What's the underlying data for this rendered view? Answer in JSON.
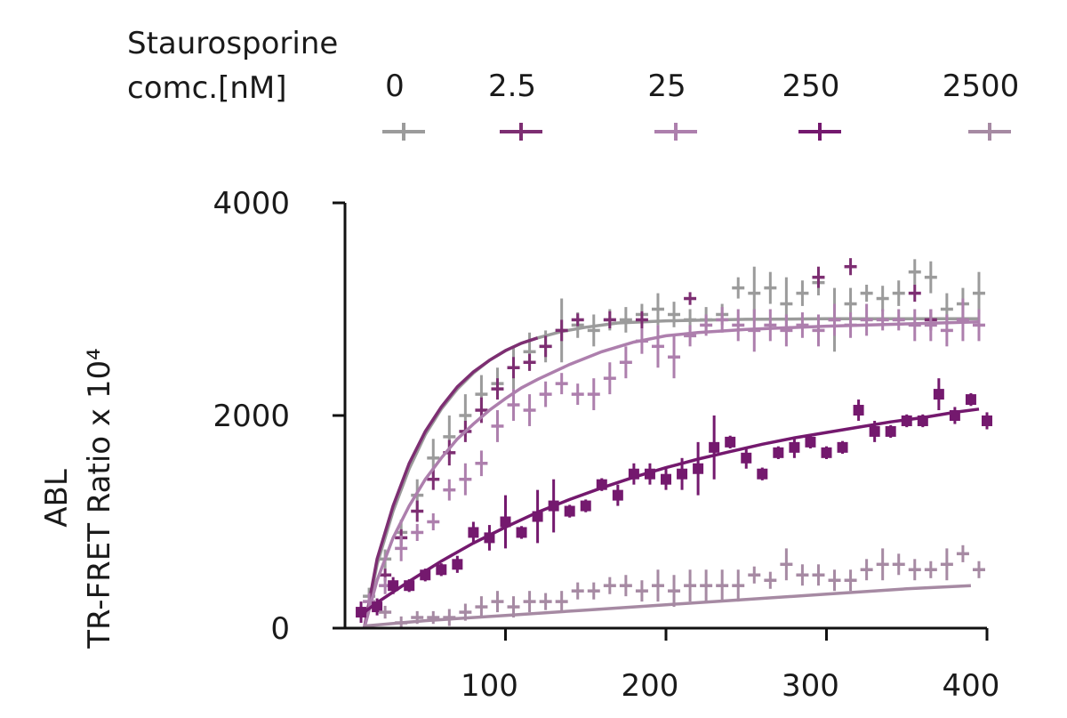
{
  "chart_data": {
    "type": "scatter",
    "ylabel_lines": [
      "ABL",
      "TR-FRET Ratio x 10⁴"
    ],
    "legend": {
      "title_lines": [
        "Staurosporine",
        "comc.[nM]"
      ],
      "placement": "top"
    },
    "xlim": [
      0,
      400
    ],
    "ylim": [
      0,
      4000
    ],
    "x_ticks": [
      100,
      200,
      300,
      400
    ],
    "x_tick_labels": [
      "100",
      "200",
      "300",
      "400"
    ],
    "y_ticks": [
      0,
      2000,
      4000
    ],
    "y_tick_labels": [
      "0",
      "2000",
      "4000"
    ],
    "series": [
      {
        "name": "0",
        "color": "#9b9b9b",
        "marker": "plus",
        "points": [
          [
            15,
            300,
            80
          ],
          [
            25,
            650,
            90
          ],
          [
            35,
            900,
            120
          ],
          [
            45,
            1250,
            150
          ],
          [
            55,
            1600,
            180
          ],
          [
            65,
            1800,
            200
          ],
          [
            75,
            2000,
            200
          ],
          [
            85,
            2200,
            180
          ],
          [
            95,
            2300,
            150
          ],
          [
            105,
            2450,
            200
          ],
          [
            115,
            2600,
            180
          ],
          [
            125,
            2650,
            150
          ],
          [
            135,
            2800,
            300
          ],
          [
            145,
            2850,
            120
          ],
          [
            155,
            2800,
            150
          ],
          [
            165,
            2900,
            100
          ],
          [
            175,
            2900,
            120
          ],
          [
            185,
            2950,
            100
          ],
          [
            195,
            3000,
            150
          ],
          [
            205,
            2950,
            120
          ],
          [
            215,
            2900,
            100
          ],
          [
            225,
            2900,
            120
          ],
          [
            235,
            2950,
            100
          ],
          [
            245,
            3200,
            100
          ],
          [
            255,
            3150,
            250
          ],
          [
            265,
            3200,
            150
          ],
          [
            275,
            3050,
            250
          ],
          [
            285,
            3150,
            120
          ],
          [
            295,
            3250,
            120
          ],
          [
            305,
            2900,
            300
          ],
          [
            315,
            3050,
            150
          ],
          [
            325,
            3150,
            80
          ],
          [
            335,
            3100,
            120
          ],
          [
            345,
            3150,
            120
          ],
          [
            355,
            3350,
            120
          ],
          [
            365,
            3300,
            150
          ],
          [
            375,
            3000,
            150
          ],
          [
            385,
            3050,
            150
          ],
          [
            395,
            3150,
            200
          ]
        ],
        "fit": [
          [
            12,
            0
          ],
          [
            20,
            600
          ],
          [
            30,
            1100
          ],
          [
            40,
            1500
          ],
          [
            50,
            1820
          ],
          [
            60,
            2060
          ],
          [
            70,
            2250
          ],
          [
            80,
            2400
          ],
          [
            90,
            2520
          ],
          [
            100,
            2610
          ],
          [
            110,
            2680
          ],
          [
            120,
            2730
          ],
          [
            135,
            2790
          ],
          [
            150,
            2830
          ],
          [
            170,
            2870
          ],
          [
            200,
            2890
          ],
          [
            250,
            2905
          ],
          [
            300,
            2910
          ],
          [
            395,
            2910
          ]
        ]
      },
      {
        "name": "2.5",
        "color": "#7d2e72",
        "marker": "plus",
        "points": [
          [
            25,
            500,
            60
          ],
          [
            35,
            850,
            80
          ],
          [
            45,
            1100,
            100
          ],
          [
            55,
            1400,
            100
          ],
          [
            65,
            1650,
            120
          ],
          [
            75,
            1850,
            100
          ],
          [
            85,
            2050,
            120
          ],
          [
            95,
            2250,
            100
          ],
          [
            105,
            2450,
            100
          ],
          [
            115,
            2500,
            80
          ],
          [
            125,
            2650,
            100
          ],
          [
            135,
            2800,
            100
          ],
          [
            145,
            2900,
            60
          ],
          [
            165,
            2900,
            80
          ],
          [
            185,
            2900,
            80
          ],
          [
            215,
            3100,
            60
          ],
          [
            295,
            3300,
            100
          ],
          [
            315,
            3400,
            80
          ],
          [
            355,
            3150,
            80
          ],
          [
            365,
            2900,
            100
          ]
        ],
        "fit": [
          [
            12,
            0
          ],
          [
            20,
            650
          ],
          [
            30,
            1150
          ],
          [
            40,
            1550
          ],
          [
            50,
            1850
          ],
          [
            60,
            2080
          ],
          [
            70,
            2270
          ],
          [
            80,
            2410
          ],
          [
            90,
            2520
          ],
          [
            100,
            2610
          ],
          [
            110,
            2680
          ],
          [
            120,
            2730
          ]
        ]
      },
      {
        "name": "25",
        "color": "#ad7fad",
        "marker": "plus",
        "points": [
          [
            15,
            250,
            80
          ],
          [
            25,
            400,
            80
          ],
          [
            35,
            750,
            120
          ],
          [
            45,
            900,
            80
          ],
          [
            55,
            1000,
            80
          ],
          [
            65,
            1300,
            100
          ],
          [
            75,
            1400,
            150
          ],
          [
            85,
            1550,
            120
          ],
          [
            95,
            1900,
            150
          ],
          [
            105,
            2100,
            150
          ],
          [
            115,
            2050,
            150
          ],
          [
            125,
            2200,
            120
          ],
          [
            135,
            2300,
            100
          ],
          [
            145,
            2200,
            100
          ],
          [
            155,
            2200,
            150
          ],
          [
            165,
            2350,
            150
          ],
          [
            175,
            2500,
            150
          ],
          [
            185,
            2700,
            120
          ],
          [
            195,
            2650,
            200
          ],
          [
            205,
            2550,
            200
          ],
          [
            215,
            2750,
            100
          ],
          [
            225,
            2850,
            100
          ],
          [
            235,
            2900,
            120
          ],
          [
            245,
            2850,
            150
          ],
          [
            255,
            2800,
            200
          ],
          [
            265,
            2850,
            150
          ],
          [
            275,
            2800,
            150
          ],
          [
            285,
            2850,
            120
          ],
          [
            295,
            2800,
            150
          ],
          [
            305,
            2900,
            150
          ],
          [
            315,
            2850,
            120
          ],
          [
            325,
            2900,
            150
          ],
          [
            335,
            2900,
            100
          ],
          [
            345,
            2900,
            100
          ],
          [
            355,
            2850,
            150
          ],
          [
            365,
            2850,
            150
          ],
          [
            375,
            2800,
            150
          ],
          [
            385,
            2900,
            200
          ],
          [
            395,
            2850,
            150
          ]
        ],
        "fit": [
          [
            12,
            0
          ],
          [
            20,
            450
          ],
          [
            30,
            850
          ],
          [
            40,
            1150
          ],
          [
            50,
            1400
          ],
          [
            60,
            1600
          ],
          [
            70,
            1780
          ],
          [
            80,
            1920
          ],
          [
            90,
            2050
          ],
          [
            100,
            2160
          ],
          [
            110,
            2260
          ],
          [
            120,
            2340
          ],
          [
            140,
            2480
          ],
          [
            160,
            2600
          ],
          [
            180,
            2690
          ],
          [
            200,
            2750
          ],
          [
            220,
            2780
          ],
          [
            250,
            2810
          ],
          [
            300,
            2840
          ],
          [
            395,
            2880
          ]
        ]
      },
      {
        "name": "250",
        "color": "#74196e",
        "marker": "square",
        "points": [
          [
            10,
            150,
            100
          ],
          [
            20,
            200,
            80
          ],
          [
            30,
            400,
            80
          ],
          [
            40,
            400,
            60
          ],
          [
            50,
            500,
            60
          ],
          [
            60,
            550,
            60
          ],
          [
            70,
            600,
            80
          ],
          [
            80,
            900,
            100
          ],
          [
            90,
            850,
            120
          ],
          [
            100,
            1000,
            250
          ],
          [
            110,
            900,
            60
          ],
          [
            120,
            1050,
            250
          ],
          [
            130,
            1150,
            250
          ],
          [
            140,
            1100,
            60
          ],
          [
            150,
            1150,
            60
          ],
          [
            160,
            1350,
            60
          ],
          [
            170,
            1250,
            100
          ],
          [
            180,
            1450,
            100
          ],
          [
            190,
            1450,
            100
          ],
          [
            200,
            1400,
            100
          ],
          [
            210,
            1450,
            150
          ],
          [
            220,
            1500,
            250
          ],
          [
            230,
            1700,
            300
          ],
          [
            240,
            1750,
            60
          ],
          [
            250,
            1600,
            100
          ],
          [
            260,
            1450,
            60
          ],
          [
            270,
            1650,
            60
          ],
          [
            280,
            1700,
            100
          ],
          [
            290,
            1750,
            60
          ],
          [
            300,
            1650,
            60
          ],
          [
            310,
            1700,
            60
          ],
          [
            320,
            2050,
            100
          ],
          [
            330,
            1850,
            100
          ],
          [
            340,
            1850,
            60
          ],
          [
            350,
            1950,
            60
          ],
          [
            360,
            1950,
            60
          ],
          [
            370,
            2200,
            150
          ],
          [
            380,
            2000,
            80
          ],
          [
            390,
            2150,
            60
          ],
          [
            400,
            1950,
            80
          ]
        ],
        "fit": [
          [
            12,
            150
          ],
          [
            20,
            240
          ],
          [
            40,
            440
          ],
          [
            60,
            630
          ],
          [
            80,
            800
          ],
          [
            100,
            950
          ],
          [
            120,
            1090
          ],
          [
            140,
            1210
          ],
          [
            160,
            1320
          ],
          [
            180,
            1420
          ],
          [
            200,
            1510
          ],
          [
            220,
            1590
          ],
          [
            240,
            1660
          ],
          [
            260,
            1730
          ],
          [
            280,
            1790
          ],
          [
            300,
            1840
          ],
          [
            320,
            1890
          ],
          [
            340,
            1940
          ],
          [
            360,
            1980
          ],
          [
            380,
            2030
          ],
          [
            395,
            2060
          ]
        ]
      },
      {
        "name": "2500",
        "color": "#a68aa3",
        "marker": "plus",
        "points": [
          [
            25,
            150,
            60
          ],
          [
            35,
            50,
            60
          ],
          [
            45,
            100,
            60
          ],
          [
            55,
            100,
            60
          ],
          [
            65,
            100,
            80
          ],
          [
            75,
            150,
            80
          ],
          [
            85,
            200,
            100
          ],
          [
            95,
            250,
            100
          ],
          [
            105,
            200,
            100
          ],
          [
            115,
            250,
            100
          ],
          [
            125,
            250,
            80
          ],
          [
            135,
            250,
            100
          ],
          [
            145,
            350,
            80
          ],
          [
            155,
            350,
            80
          ],
          [
            165,
            400,
            80
          ],
          [
            175,
            400,
            100
          ],
          [
            185,
            350,
            100
          ],
          [
            195,
            400,
            150
          ],
          [
            205,
            350,
            150
          ],
          [
            215,
            400,
            150
          ],
          [
            225,
            400,
            150
          ],
          [
            235,
            400,
            150
          ],
          [
            245,
            400,
            150
          ],
          [
            255,
            500,
            80
          ],
          [
            265,
            450,
            80
          ],
          [
            275,
            600,
            150
          ],
          [
            285,
            500,
            100
          ],
          [
            295,
            500,
            100
          ],
          [
            305,
            450,
            100
          ],
          [
            315,
            450,
            100
          ],
          [
            325,
            550,
            100
          ],
          [
            335,
            600,
            150
          ],
          [
            345,
            600,
            100
          ],
          [
            355,
            550,
            100
          ],
          [
            365,
            550,
            80
          ],
          [
            375,
            600,
            150
          ],
          [
            385,
            700,
            80
          ],
          [
            395,
            550,
            80
          ]
        ],
        "fit": [
          [
            12,
            20
          ],
          [
            50,
            70
          ],
          [
            100,
            120
          ],
          [
            150,
            170
          ],
          [
            200,
            220
          ],
          [
            250,
            270
          ],
          [
            300,
            320
          ],
          [
            350,
            370
          ],
          [
            390,
            400
          ]
        ]
      }
    ]
  }
}
